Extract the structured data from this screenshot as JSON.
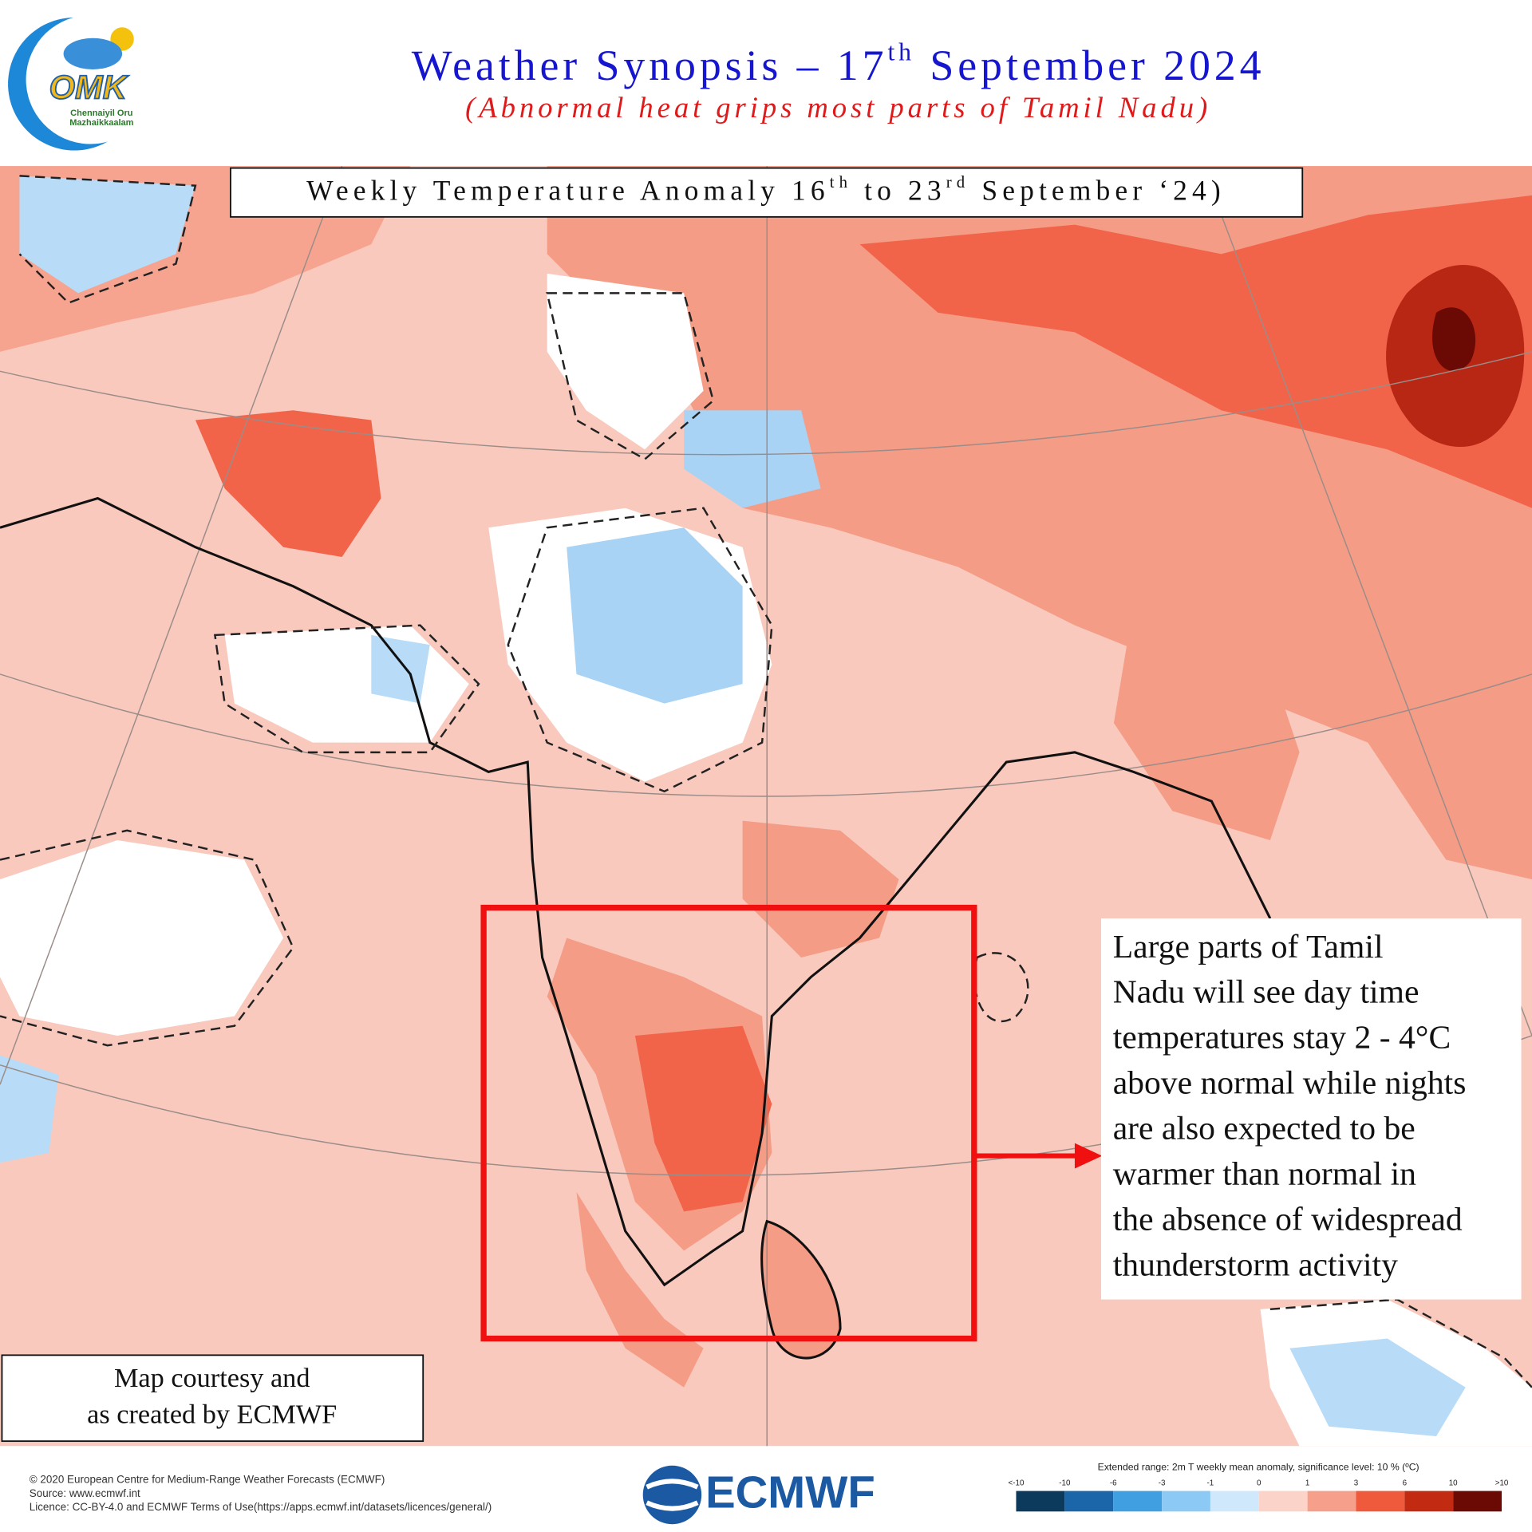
{
  "header": {
    "logo": {
      "mark": "OMK",
      "line1": "Chennaiyil Oru",
      "line2": "Mazhaikkaalam"
    },
    "title": {
      "parts": [
        "Weather Synopsis – 17",
        "th",
        " September 2024"
      ]
    },
    "subtitle": "(Abnormal heat grips most parts of Tamil Nadu)"
  },
  "map": {
    "title": {
      "parts": [
        "Weekly Temperature Anomaly 16",
        "th",
        " to 23",
        "rd",
        " September ‘24)"
      ]
    },
    "callout": {
      "lines": [
        "Large parts of Tamil",
        "Nadu will see day time",
        "temperatures stay 2 - 4°C",
        "above normal while nights",
        "are also expected to be",
        "warmer than normal in",
        "the absence of widespread",
        "thunderstorm activity"
      ]
    },
    "credit": {
      "lines": [
        "Map courtesy and",
        "as created by ECMWF"
      ]
    }
  },
  "footer": {
    "lines": [
      "© 2020 European Centre for Medium-Range Weather Forecasts (ECMWF)",
      "Source: www.ecmwf.int",
      "Licence: CC-BY-4.0 and ECMWF Terms of Use(https://apps.ecmwf.int/datasets/licences/general/)"
    ],
    "brand": "ECMWF"
  },
  "legend": {
    "title": "Extended range: 2m T weekly mean anomaly, significance level: 10 % (ºC)",
    "labels": [
      "<-10",
      -10,
      -6,
      -3,
      -1,
      0,
      1,
      3,
      6,
      10,
      ">10"
    ],
    "colors": [
      "#0b3a5c",
      "#1a66a8",
      "#3f9fe0",
      "#8ccaf5",
      "#cfe8fb",
      "#fbd3c9",
      "#f6a08c",
      "#f05a3c",
      "#c22a12",
      "#6b0a04"
    ]
  }
}
